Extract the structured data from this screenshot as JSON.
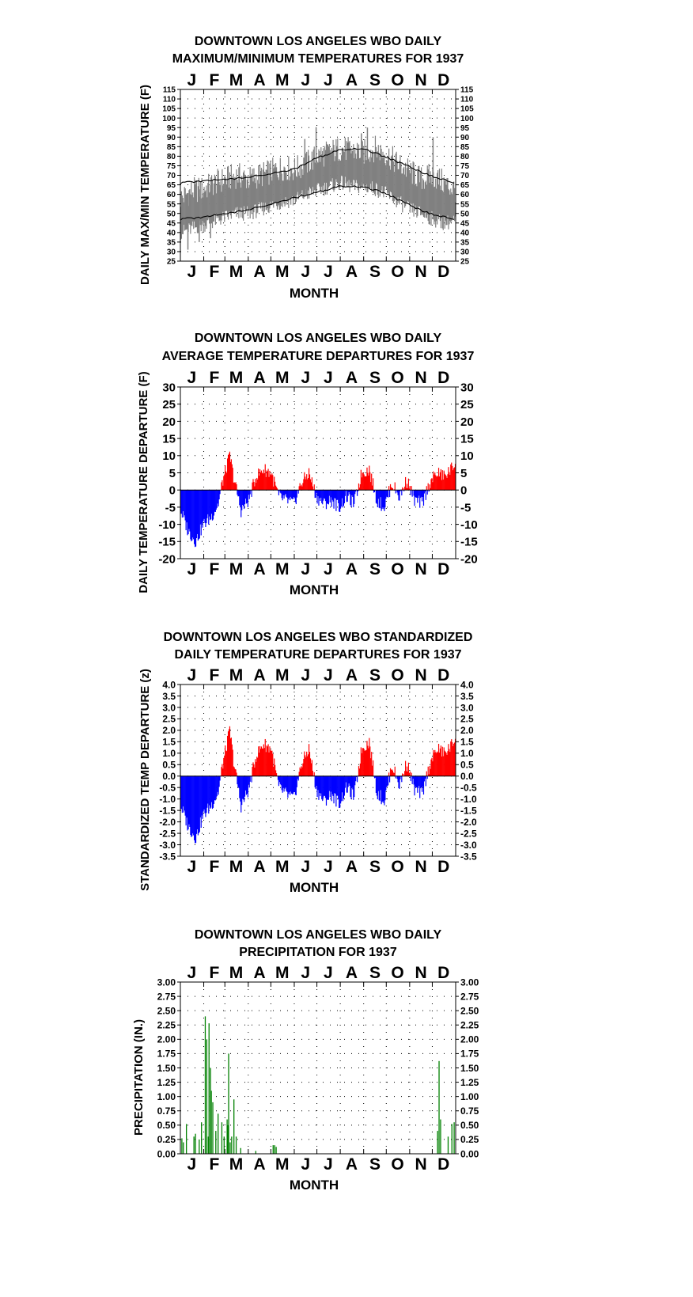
{
  "months": [
    "J",
    "F",
    "M",
    "A",
    "M",
    "J",
    "J",
    "A",
    "S",
    "O",
    "N",
    "D"
  ],
  "colors": {
    "frame": "#000000",
    "minmax": "#808080",
    "normal": "#000000",
    "positive": "#ff0000",
    "negative": "#0000ff",
    "precip": "#008000"
  },
  "chart_data": [
    {
      "id": "maxmin",
      "type": "area",
      "title": [
        "DOWNTOWN LOS ANGELES WBO DAILY",
        "MAXIMUM/MINIMUM TEMPERATURES FOR 1937"
      ],
      "xlabel": "MONTH",
      "ylabel": "DAILY MAX/MIN TEMPERATURE (F)",
      "x_unit": "day of year",
      "ylim": [
        25,
        115
      ],
      "yticks": [
        25,
        30,
        35,
        40,
        45,
        50,
        55,
        60,
        65,
        70,
        75,
        80,
        85,
        90,
        95,
        100,
        105,
        110,
        115
      ],
      "grid": true,
      "knots_x": [
        0,
        15,
        31,
        45,
        59,
        75,
        90,
        105,
        120,
        135,
        151,
        166,
        181,
        196,
        212,
        227,
        243,
        258,
        273,
        288,
        304,
        319,
        334,
        349,
        365
      ],
      "daily_max_knots": [
        58,
        62,
        63,
        66,
        68,
        70,
        68,
        70,
        72,
        74,
        73,
        76,
        80,
        82,
        84,
        83,
        82,
        84,
        81,
        76,
        72,
        68,
        70,
        66,
        62
      ],
      "daily_min_knots": [
        40,
        42,
        44,
        46,
        48,
        50,
        50,
        52,
        54,
        56,
        57,
        60,
        62,
        64,
        66,
        64,
        64,
        63,
        60,
        56,
        52,
        50,
        47,
        45,
        46
      ],
      "daily_max_peaks": [
        {
          "x": 165,
          "y": 89
        },
        {
          "x": 180,
          "y": 95
        },
        {
          "x": 240,
          "y": 92
        },
        {
          "x": 248,
          "y": 95
        },
        {
          "x": 335,
          "y": 90
        }
      ],
      "daily_min_lows": [
        {
          "x": 10,
          "y": 31
        },
        {
          "x": 25,
          "y": 35
        },
        {
          "x": 40,
          "y": 37
        }
      ],
      "normal_max": {
        "x": [
          0,
          30,
          60,
          90,
          120,
          150,
          180,
          210,
          240,
          270,
          300,
          330,
          365
        ],
        "y": [
          66,
          67,
          68,
          69,
          71,
          73,
          79,
          83,
          84,
          80,
          75,
          70,
          66
        ]
      },
      "normal_min": {
        "x": [
          0,
          30,
          60,
          90,
          120,
          150,
          180,
          210,
          240,
          270,
          300,
          330,
          365
        ],
        "y": [
          47,
          48,
          50,
          52,
          55,
          58,
          61,
          64,
          64,
          61,
          55,
          50,
          47
        ]
      }
    },
    {
      "id": "departure",
      "type": "bar",
      "title": [
        "DOWNTOWN LOS ANGELES WBO DAILY",
        "AVERAGE TEMPERATURE DEPARTURES FOR 1937"
      ],
      "xlabel": "MONTH",
      "ylabel": "DAILY TEMPERATURE DEPARTURE (F)",
      "x_unit": "day of year",
      "ylim": [
        -20,
        30
      ],
      "yticks": [
        -20,
        -15,
        -10,
        -5,
        0,
        5,
        10,
        15,
        20,
        25,
        30
      ],
      "grid": true,
      "knots_x": [
        0,
        10,
        20,
        30,
        40,
        50,
        55,
        60,
        65,
        70,
        80,
        90,
        100,
        110,
        120,
        130,
        140,
        150,
        160,
        170,
        180,
        190,
        200,
        210,
        220,
        230,
        240,
        250,
        260,
        270,
        280,
        290,
        300,
        310,
        320,
        330,
        340,
        350,
        358,
        365
      ],
      "knots_y": [
        -6,
        -12,
        -15,
        -10,
        -8,
        -4,
        2,
        6,
        10,
        4,
        -6,
        -3,
        4,
        6,
        5,
        -2,
        -3,
        -4,
        2,
        5,
        -2,
        -4,
        -3,
        -5,
        -2,
        -4,
        5,
        6,
        -3,
        -5,
        2,
        -2,
        3,
        -3,
        -4,
        2,
        5,
        4,
        6,
        8
      ]
    },
    {
      "id": "standardized",
      "type": "bar",
      "title": [
        "DOWNTOWN LOS ANGELES WBO STANDARDIZED",
        "DAILY TEMPERATURE DEPARTURES FOR 1937"
      ],
      "xlabel": "MONTH",
      "ylabel": "STANDARDIZED TEMP DEPARTURE (z)",
      "x_unit": "day of year",
      "ylim": [
        -3.5,
        4.0
      ],
      "yticks": [
        -3.5,
        -3.0,
        -2.5,
        -2.0,
        -1.5,
        -1.0,
        -0.5,
        0.0,
        0.5,
        1.0,
        1.5,
        2.0,
        2.5,
        3.0,
        3.5,
        4.0
      ],
      "grid": true,
      "knots_x": [
        0,
        10,
        20,
        30,
        40,
        50,
        55,
        60,
        65,
        70,
        80,
        90,
        100,
        110,
        120,
        130,
        140,
        150,
        160,
        170,
        180,
        190,
        200,
        210,
        220,
        230,
        240,
        250,
        260,
        270,
        280,
        290,
        300,
        310,
        320,
        330,
        340,
        350,
        358,
        365
      ],
      "knots_y": [
        -1.3,
        -2.2,
        -2.7,
        -1.7,
        -1.3,
        -0.7,
        0.4,
        1.2,
        2.0,
        0.7,
        -1.3,
        -0.6,
        0.9,
        1.4,
        1.2,
        -0.5,
        -0.8,
        -1.0,
        0.5,
        1.2,
        -0.6,
        -1.1,
        -0.8,
        -1.2,
        -0.5,
        -0.9,
        1.2,
        1.5,
        -0.7,
        -1.1,
        0.5,
        -0.4,
        0.6,
        -0.6,
        -0.8,
        0.5,
        1.2,
        1.0,
        1.3,
        1.7
      ]
    },
    {
      "id": "precip",
      "type": "bar",
      "title": [
        "DOWNTOWN LOS ANGELES WBO DAILY",
        "PRECIPITATION FOR 1937"
      ],
      "xlabel": "MONTH",
      "ylabel": "PRECIPITATION (IN.)",
      "x_unit": "day of year",
      "ylim": [
        0,
        3.0
      ],
      "yticks": [
        0.0,
        0.25,
        0.5,
        0.75,
        1.0,
        1.25,
        1.5,
        1.75,
        2.0,
        2.25,
        2.5,
        2.75,
        3.0
      ],
      "grid": true,
      "days": [
        2,
        4,
        8,
        18,
        20,
        25,
        28,
        33,
        35,
        37,
        38,
        40,
        41,
        43,
        47,
        50,
        55,
        58,
        62,
        63,
        64,
        66,
        68,
        71,
        74,
        80,
        100,
        123,
        125,
        127,
        341,
        343,
        345,
        355,
        360,
        363
      ],
      "values": [
        0.27,
        0.2,
        0.52,
        0.3,
        0.35,
        0.25,
        0.55,
        2.4,
        2.0,
        0.3,
        2.28,
        1.5,
        1.1,
        0.9,
        0.4,
        0.7,
        0.55,
        0.3,
        0.6,
        0.5,
        1.75,
        0.2,
        0.3,
        0.95,
        0.3,
        0.1,
        0.05,
        0.15,
        0.15,
        0.12,
        0.4,
        1.62,
        0.6,
        0.3,
        0.52,
        0.55
      ]
    }
  ]
}
